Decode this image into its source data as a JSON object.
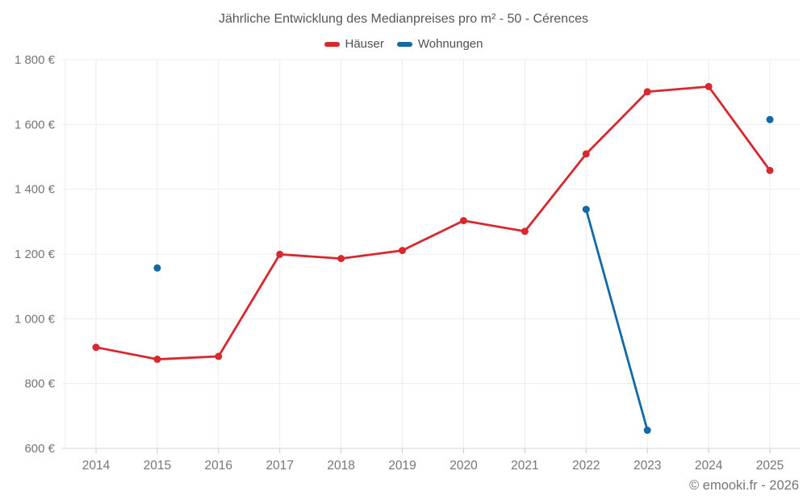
{
  "chart_data": {
    "type": "line",
    "title": "Jährliche Entwicklung des Medianpreises pro m² - 50 - Cérences",
    "xlabel": "",
    "ylabel": "",
    "categories": [
      "2014",
      "2015",
      "2016",
      "2017",
      "2018",
      "2019",
      "2020",
      "2021",
      "2022",
      "2023",
      "2024",
      "2025"
    ],
    "series": [
      {
        "name": "Häuser",
        "color": "#d7282e",
        "values": [
          912,
          875,
          884,
          1199,
          1186,
          1211,
          1303,
          1270,
          1509,
          1701,
          1717,
          1458
        ]
      },
      {
        "name": "Wohnungen",
        "color": "#1369a6",
        "values": [
          null,
          1157,
          null,
          null,
          null,
          null,
          null,
          null,
          1338,
          656,
          null,
          1615
        ]
      }
    ],
    "ylim": [
      600,
      1800
    ],
    "ytick_values": [
      600,
      800,
      1000,
      1200,
      1400,
      1600,
      1800
    ],
    "ytick_labels": [
      "600 €",
      "800 €",
      "1 000 €",
      "1 200 €",
      "1 400 €",
      "1 600 €",
      "1 800 €"
    ],
    "grid": true,
    "legend_position": "top",
    "marker": "circle"
  },
  "style_colors": {
    "gridline": "#ececec",
    "axis_line": "#d4d4d4",
    "tick_mark": "#c9c9c9",
    "axis_text": "#757575"
  },
  "footer": {
    "copyright": "© emooki.fr - 2026"
  }
}
